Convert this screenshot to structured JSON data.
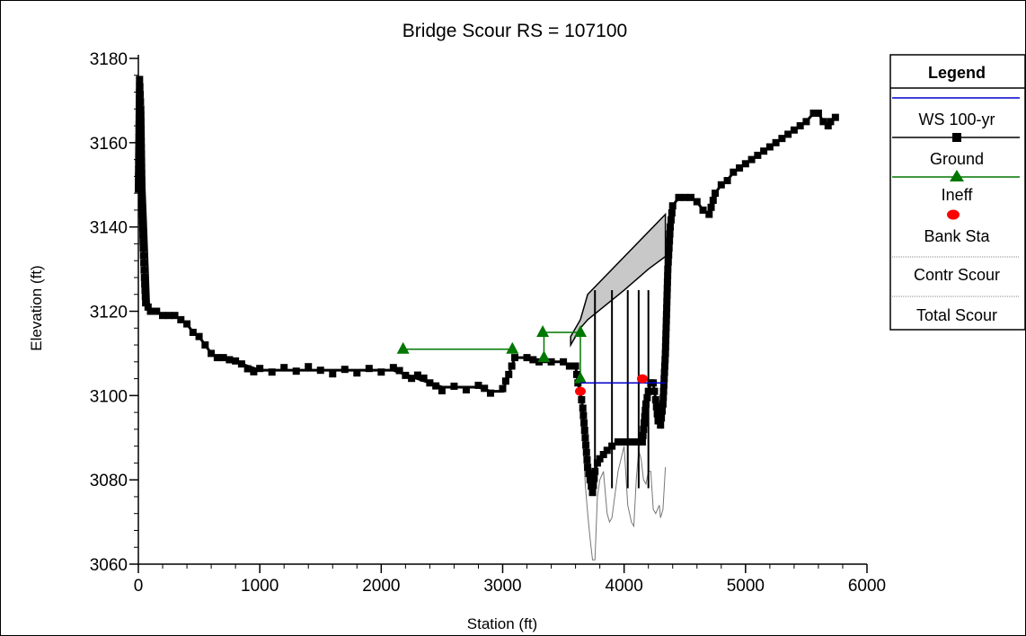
{
  "chart_data": {
    "type": "line",
    "title": "Bridge Scour RS = 107100",
    "xlabel": "Station (ft)",
    "ylabel": "Elevation (ft)",
    "xlim": [
      0,
      6000
    ],
    "ylim": [
      3060,
      3180
    ],
    "xticks": [
      0,
      1000,
      2000,
      3000,
      4000,
      5000,
      6000
    ],
    "yticks": [
      3060,
      3080,
      3100,
      3120,
      3140,
      3160,
      3180
    ],
    "legend": {
      "title": "Legend",
      "position": "right",
      "entries": [
        "WS 100-yr",
        "Ground",
        "Ineff",
        "Bank Sta",
        "Contr Scour",
        "Total Scour"
      ]
    },
    "colors": {
      "ws": "#0000cc",
      "ground": "#000000",
      "ineff": "#007700",
      "bank": "#ff0000",
      "scour": "#777777",
      "fill": "#c8c8c8"
    },
    "series": [
      {
        "name": "WS 100-yr",
        "x": [
          3640,
          4340
        ],
        "y": [
          3103,
          3103
        ]
      },
      {
        "name": "Ground",
        "x": [
          0,
          10,
          20,
          30,
          40,
          50,
          60,
          80,
          100,
          150,
          200,
          250,
          300,
          350,
          400,
          450,
          500,
          550,
          600,
          650,
          700,
          800,
          900,
          1000,
          1100,
          1200,
          1300,
          1400,
          1500,
          1600,
          1700,
          1800,
          1900,
          2000,
          2100,
          2200,
          2300,
          2400,
          2500,
          2600,
          2700,
          2800,
          2900,
          3000,
          3050,
          3100,
          3200,
          3300,
          3400,
          3500,
          3550,
          3600,
          3620,
          3640,
          3660,
          3680,
          3700,
          3720,
          3740,
          3760,
          3780,
          3800,
          3830,
          3860,
          3900,
          3950,
          4000,
          4050,
          4100,
          4150,
          4180,
          4200,
          4220,
          4240,
          4260,
          4280,
          4300,
          4320,
          4340,
          4360,
          4380,
          4400,
          4450,
          4500,
          4550,
          4600,
          4650,
          4700,
          4750,
          4800,
          4850,
          4900,
          5000,
          5100,
          5200,
          5300,
          5400,
          5500,
          5560,
          5600,
          5640,
          5680,
          5700,
          5740
        ],
        "y": [
          3149,
          3175,
          3168,
          3148,
          3135,
          3128,
          3122,
          3121,
          3120,
          3120,
          3119,
          3119,
          3119,
          3118,
          3117,
          3115,
          3114,
          3112,
          3110,
          3109,
          3109,
          3108,
          3107,
          3106,
          3106,
          3106,
          3106,
          3106,
          3106,
          3106,
          3106,
          3106,
          3106,
          3106,
          3106,
          3105,
          3104,
          3103,
          3102,
          3102,
          3102,
          3102,
          3101,
          3101,
          3105,
          3109,
          3109,
          3108,
          3108,
          3108,
          3107,
          3107,
          3103,
          3101,
          3097,
          3090,
          3083,
          3080,
          3077,
          3082,
          3084,
          3085,
          3086,
          3087,
          3088,
          3089,
          3089,
          3089,
          3089,
          3089,
          3098,
          3101,
          3103,
          3103,
          3099,
          3094,
          3093,
          3098,
          3110,
          3130,
          3140,
          3145,
          3147,
          3147,
          3147,
          3146,
          3144,
          3143,
          3148,
          3150,
          3151,
          3153,
          3155,
          3157,
          3159,
          3161,
          3163,
          3165,
          3167,
          3167,
          3165,
          3164,
          3165,
          3166
        ]
      },
      {
        "name": "Ineff",
        "x": [
          2180,
          3080,
          3330,
          3340,
          3640,
          3640
        ],
        "y": [
          3111,
          3111,
          3115,
          3109,
          3115,
          3104
        ]
      },
      {
        "name": "Bank Sta",
        "x": [
          3640,
          4150
        ],
        "y": [
          3101,
          3104
        ]
      },
      {
        "name": "Total Scour",
        "x": [
          3620,
          3660,
          3680,
          3700,
          3720,
          3740,
          3760,
          3780,
          3800,
          3830,
          3860,
          3880,
          3900,
          3950,
          4000,
          4030,
          4060,
          4080,
          4100,
          4120,
          4140,
          4160,
          4180,
          4200,
          4220,
          4240,
          4260,
          4290,
          4300,
          4320,
          4340
        ],
        "y": [
          3103,
          3090,
          3079,
          3072,
          3066,
          3061,
          3061,
          3076,
          3080,
          3082,
          3072,
          3070,
          3071,
          3082,
          3088,
          3074,
          3070,
          3069,
          3080,
          3087,
          3085,
          3080,
          3079,
          3082,
          3082,
          3073,
          3072,
          3074,
          3071,
          3073,
          3083
        ]
      }
    ],
    "bridge_deck": {
      "top": {
        "x": [
          3560,
          3640,
          3700,
          4340,
          4340
        ],
        "y": [
          3114,
          3118,
          3124,
          3143,
          3125
        ]
      },
      "bottom": {
        "x": [
          3560,
          3640,
          3700,
          4000,
          4200,
          4340,
          4340
        ],
        "y": [
          3112,
          3116,
          3118,
          3125,
          3130,
          3133,
          3125
        ]
      },
      "piers": [
        3760,
        3900,
        4030,
        4120,
        4200
      ]
    },
    "left_fill": {
      "x": [
        0,
        30,
        60,
        80,
        90
      ],
      "top": [
        3175,
        3165,
        3145,
        3130,
        3122
      ],
      "bottom": [
        3149,
        3140,
        3128,
        3122,
        3120
      ]
    }
  }
}
